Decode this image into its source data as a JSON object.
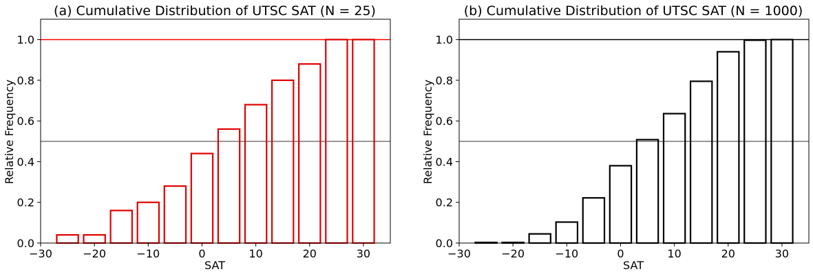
{
  "chart_data": [
    {
      "type": "bar",
      "title": "(a) Cumulative Distribution of UTSC SAT (N = 25)",
      "xlabel": "SAT",
      "ylabel": "Relative Frequency",
      "xlim": [
        -30,
        35
      ],
      "ylim": [
        0,
        1.1
      ],
      "xticks": [
        -30,
        -20,
        -10,
        0,
        10,
        20,
        30
      ],
      "xtick_labels": [
        "−30",
        "−20",
        "−10",
        "0",
        "10",
        "20",
        "30"
      ],
      "yticks": [
        0.0,
        0.2,
        0.4,
        0.6,
        0.8,
        1.0
      ],
      "ytick_labels": [
        "0.0",
        "0.2",
        "0.4",
        "0.6",
        "0.8",
        "1.0"
      ],
      "bar_width": 4,
      "x": [
        -25,
        -20,
        -15,
        -10,
        -5,
        0,
        5,
        10,
        15,
        20,
        25,
        30
      ],
      "values": [
        0.04,
        0.04,
        0.16,
        0.2,
        0.28,
        0.44,
        0.56,
        0.68,
        0.8,
        0.88,
        1.0,
        1.0
      ],
      "bar_color": "#e00000",
      "hlines": [
        {
          "y": 1.0,
          "color": "#ff0000"
        },
        {
          "y": 0.5,
          "color": "#808080"
        }
      ],
      "grid": false,
      "legend": "none"
    },
    {
      "type": "bar",
      "title": "(b) Cumulative Distribution of UTSC SAT (N = 1000)",
      "xlabel": "SAT",
      "ylabel": "Relative Frequency",
      "xlim": [
        -30,
        35
      ],
      "ylim": [
        0,
        1.1
      ],
      "xticks": [
        -30,
        -20,
        -10,
        0,
        10,
        20,
        30
      ],
      "xtick_labels": [
        "−30",
        "−20",
        "−10",
        "0",
        "10",
        "20",
        "30"
      ],
      "yticks": [
        0.0,
        0.2,
        0.4,
        0.6,
        0.8,
        1.0
      ],
      "ytick_labels": [
        "0.0",
        "0.2",
        "0.4",
        "0.6",
        "0.8",
        "1.0"
      ],
      "bar_width": 4,
      "x": [
        -25,
        -20,
        -15,
        -10,
        -5,
        0,
        5,
        10,
        15,
        20,
        25,
        30
      ],
      "values": [
        0.003,
        0.003,
        0.045,
        0.103,
        0.222,
        0.38,
        0.508,
        0.636,
        0.795,
        0.94,
        0.997,
        1.0
      ],
      "bar_color": "#000000",
      "hlines": [
        {
          "y": 1.0,
          "color": "#000000"
        },
        {
          "y": 0.5,
          "color": "#808080"
        }
      ],
      "grid": false,
      "legend": "none"
    }
  ]
}
